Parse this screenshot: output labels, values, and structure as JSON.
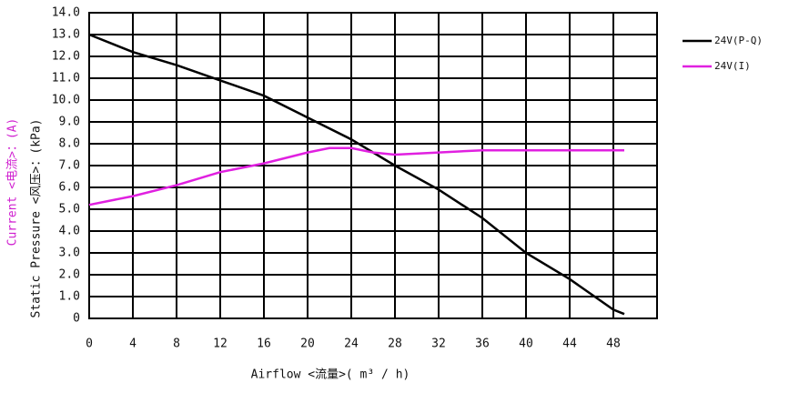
{
  "chart_data": {
    "type": "line",
    "x_label": "Airflow <流量>( m³ / h)",
    "y_label": "Static Pressure <风压>：(kPa)",
    "y2_label": "Current <电流>：(A)",
    "xlim": [
      0,
      52
    ],
    "xticks": [
      0,
      4,
      8,
      12,
      16,
      20,
      24,
      28,
      32,
      36,
      40,
      44,
      48
    ],
    "ylim": [
      0,
      14
    ],
    "yticks": [
      0,
      {
        "value": 1,
        "label": "1.0"
      },
      {
        "value": 2,
        "label": "2.0"
      },
      {
        "value": 3,
        "label": "3.0"
      },
      {
        "value": 4,
        "label": "4.0"
      },
      {
        "value": 5,
        "label": "5.0"
      },
      {
        "value": 6,
        "label": "6.0"
      },
      {
        "value": 7,
        "label": "7.0"
      },
      {
        "value": 8,
        "label": "8.0"
      },
      {
        "value": 9,
        "label": "9.0"
      },
      {
        "value": 10,
        "label": "10.0"
      },
      {
        "value": 11,
        "label": "11.0"
      },
      {
        "value": 12,
        "label": "12.0"
      },
      {
        "value": 13,
        "label": "13.0"
      },
      {
        "value": 14,
        "label": "14.0"
      }
    ],
    "grid": true,
    "series": [
      {
        "name": "24V(P-Q)",
        "color": "#000000",
        "x": [
          0,
          4,
          8,
          12,
          16,
          20,
          24,
          28,
          32,
          36,
          40,
          44,
          48,
          49
        ],
        "values": [
          13.0,
          12.2,
          11.6,
          10.9,
          10.2,
          9.2,
          8.2,
          7.0,
          5.9,
          4.6,
          3.0,
          1.8,
          0.4,
          0.2
        ]
      },
      {
        "name": "24V(I)",
        "color": "#e020e0",
        "x": [
          0,
          4,
          8,
          12,
          16,
          20,
          22,
          24,
          26,
          28,
          32,
          36,
          40,
          44,
          49
        ],
        "values": [
          5.2,
          5.6,
          6.1,
          6.7,
          7.1,
          7.6,
          7.8,
          7.8,
          7.6,
          7.5,
          7.6,
          7.7,
          7.7,
          7.7,
          7.7
        ]
      }
    ]
  }
}
